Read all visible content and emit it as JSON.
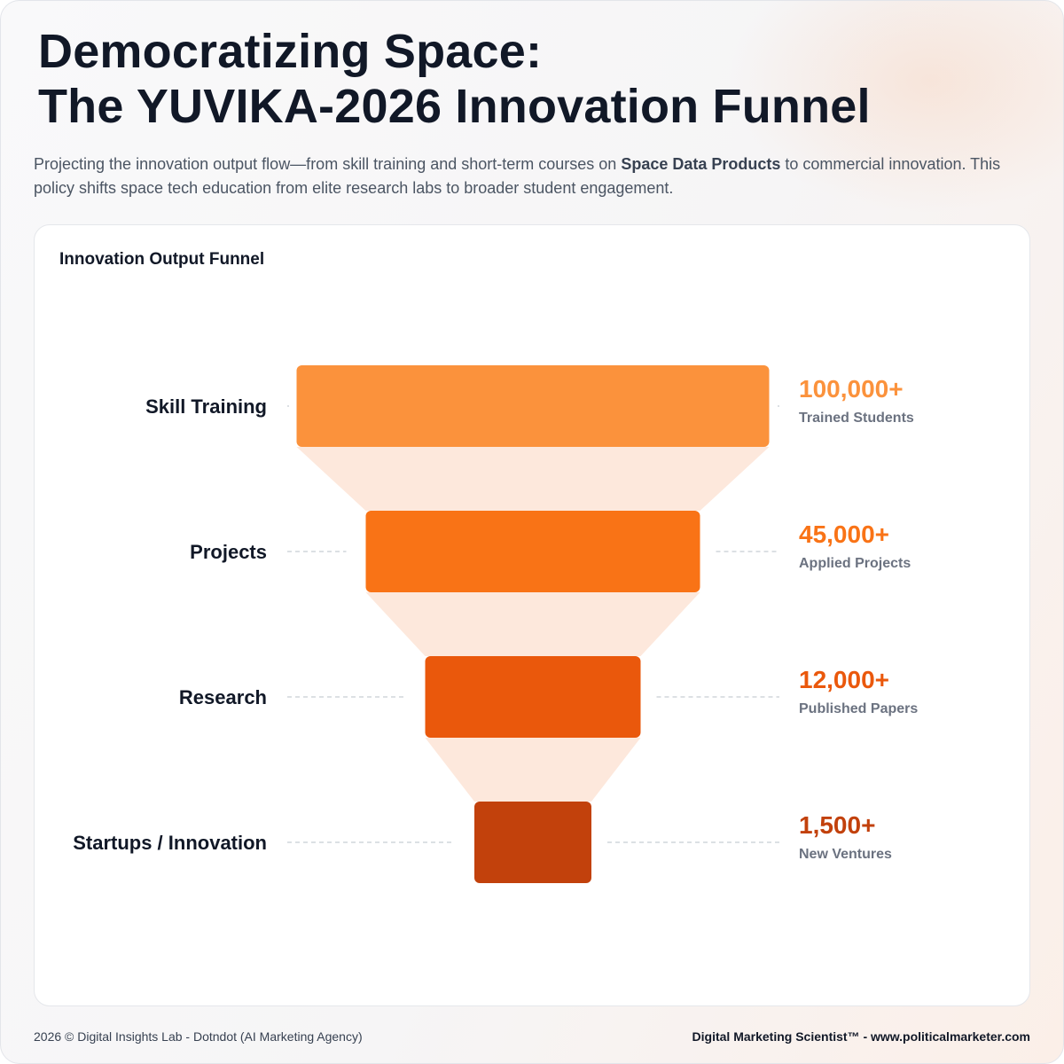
{
  "header": {
    "title_line1": "Democratizing Space:",
    "title_line2": "The YUVIKA-2026 Innovation Funnel",
    "subtitle_pre": "Projecting the innovation output flow—from skill training and short-term courses on ",
    "subtitle_bold": "Space Data Products",
    "subtitle_post": " to commercial innovation. This policy shifts space tech education from elite research labs to broader student engagement."
  },
  "card": {
    "title": "Innovation Output Funnel"
  },
  "chart_data": {
    "type": "funnel",
    "stages": [
      {
        "label": "Skill Training",
        "value": 100000,
        "value_text": "100,000+",
        "sublabel": "Trained Students",
        "color": "#fb923c"
      },
      {
        "label": "Projects",
        "value": 45000,
        "value_text": "45,000+",
        "sublabel": "Applied Projects",
        "color": "#f97316"
      },
      {
        "label": "Research",
        "value": 12000,
        "value_text": "12,000+",
        "sublabel": "Published Papers",
        "color": "#ea580c"
      },
      {
        "label": "Startups / Innovation",
        "value": 1500,
        "value_text": "1,500+",
        "sublabel": "New Ventures",
        "color": "#c2410c"
      }
    ],
    "connector_color": "#fde8dc"
  },
  "footer": {
    "left": "2026 © Digital Insights Lab - Dotndot (AI Marketing Agency)",
    "right": "Digital Marketing Scientist™ - www.politicalmarketer.com"
  }
}
